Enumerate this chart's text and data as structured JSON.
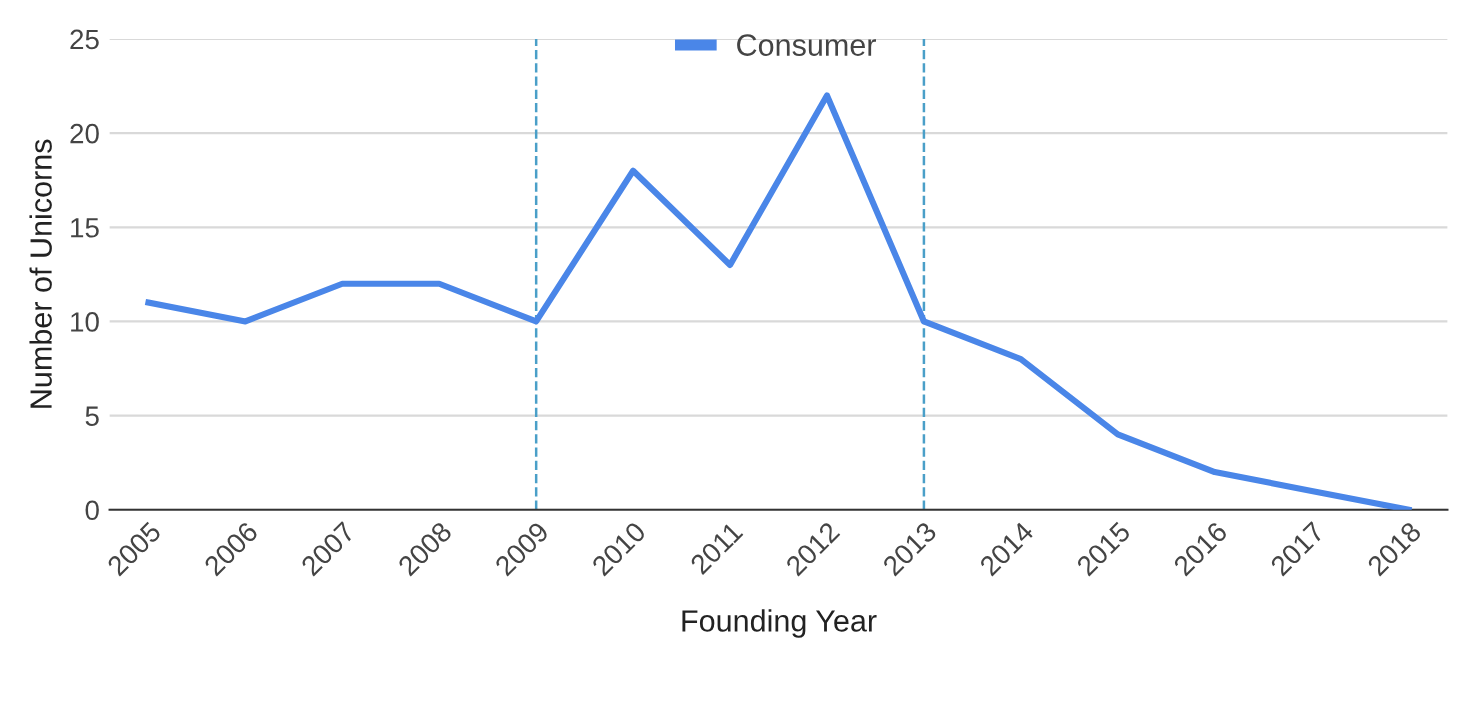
{
  "chart_data": {
    "type": "line",
    "xlabel": "Founding Year",
    "ylabel": "Number of Unicorns",
    "categories": [
      "2005",
      "2006",
      "2007",
      "2008",
      "2009",
      "2010",
      "2011",
      "2012",
      "2013",
      "2014",
      "2015",
      "2016",
      "2017",
      "2018"
    ],
    "series": [
      {
        "name": "Consumer",
        "color": "#4a86e8",
        "values": [
          11,
          10,
          12,
          12,
          10,
          18,
          13,
          22,
          10,
          8,
          4,
          2,
          1,
          0
        ]
      }
    ],
    "ylim": [
      0,
      25
    ],
    "yticks": [
      0,
      5,
      10,
      15,
      20,
      25
    ],
    "grid": "y",
    "legend": "top",
    "marker": "none",
    "line_style": "solid",
    "ref_lines": [
      {
        "axis": "x",
        "value": "2009",
        "color": "#4a9fc8",
        "line_style": "dashed"
      },
      {
        "axis": "x",
        "value": "2013",
        "color": "#4a9fc8",
        "line_style": "dashed"
      }
    ]
  }
}
